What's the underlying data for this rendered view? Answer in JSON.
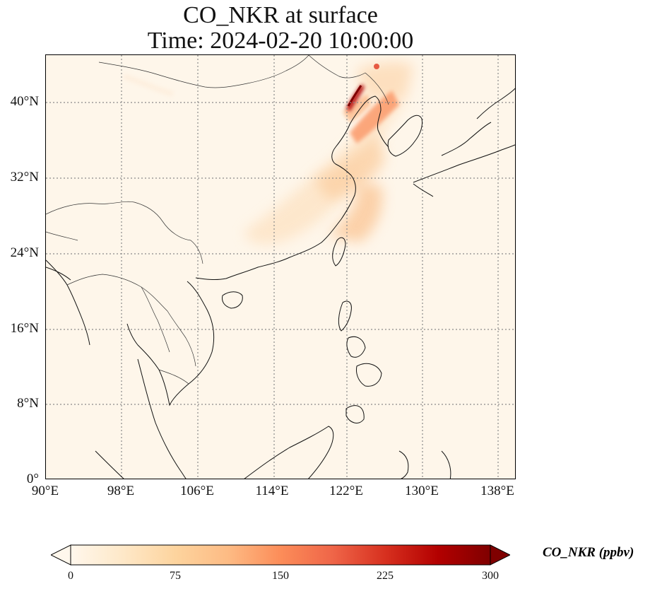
{
  "title": {
    "line1": "CO_NKR at surface",
    "line2": "Time: 2024-02-20 10:00:00"
  },
  "map": {
    "projection": "PlateCarree",
    "extent_lon": [
      90,
      139.5
    ],
    "extent_lat": [
      0,
      44.5
    ],
    "lat_ticks": [
      "0°",
      "8°N",
      "16°N",
      "24°N",
      "32°N",
      "40°N"
    ],
    "lon_ticks": [
      "90°E",
      "98°E",
      "106°E",
      "114°E",
      "122°E",
      "130°E",
      "138°E"
    ],
    "gridlines": "dotted gray",
    "background_color": "#fef6ea"
  },
  "colorbar": {
    "label": "CO_NKR (ppbv)",
    "ticks": [
      "0",
      "75",
      "150",
      "225",
      "300"
    ],
    "range": [
      0,
      300
    ],
    "colormap": "OrRd",
    "extend": "both"
  },
  "field_highlights": [
    {
      "region": "Liaodong / Bohai coast",
      "max_value": 300
    },
    {
      "region": "North China Plain plume",
      "approx_value": 60
    },
    {
      "region": "Yangtze delta outflow",
      "approx_value": 50
    },
    {
      "region": "NE China (~43°N, 125°E)",
      "approx_value": 180
    }
  ]
}
